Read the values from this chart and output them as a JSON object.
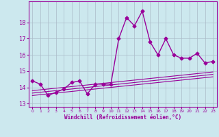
{
  "x": [
    0,
    1,
    2,
    3,
    4,
    5,
    6,
    7,
    8,
    9,
    10,
    11,
    12,
    13,
    14,
    15,
    16,
    17,
    18,
    19,
    20,
    21,
    22,
    23
  ],
  "y_line": [
    14.4,
    14.2,
    13.5,
    13.7,
    13.9,
    14.3,
    14.4,
    13.6,
    14.2,
    14.2,
    14.2,
    17.0,
    18.3,
    17.8,
    18.7,
    16.8,
    16.0,
    17.0,
    16.0,
    15.8,
    15.8,
    16.1,
    15.5,
    15.6
  ],
  "y_band_low": [
    13.5,
    13.55,
    13.6,
    13.65,
    13.7,
    13.75,
    13.8,
    13.85,
    13.9,
    13.95,
    14.0,
    14.05,
    14.1,
    14.15,
    14.2,
    14.25,
    14.3,
    14.35,
    14.4,
    14.45,
    14.5,
    14.55,
    14.6,
    14.65
  ],
  "y_band_mid": [
    13.65,
    13.7,
    13.75,
    13.8,
    13.85,
    13.9,
    13.95,
    14.0,
    14.05,
    14.1,
    14.15,
    14.2,
    14.25,
    14.3,
    14.35,
    14.4,
    14.45,
    14.5,
    14.55,
    14.6,
    14.65,
    14.7,
    14.75,
    14.8
  ],
  "y_band_high": [
    13.8,
    13.85,
    13.9,
    13.95,
    14.0,
    14.05,
    14.1,
    14.15,
    14.2,
    14.25,
    14.3,
    14.35,
    14.4,
    14.45,
    14.5,
    14.55,
    14.6,
    14.65,
    14.7,
    14.75,
    14.8,
    14.85,
    14.9,
    14.95
  ],
  "line_color": "#990099",
  "bg_color": "#cce8ee",
  "grid_color": "#aabbc8",
  "ylim": [
    12.8,
    19.3
  ],
  "yticks": [
    13,
    14,
    15,
    16,
    17,
    18
  ],
  "xticks": [
    0,
    1,
    2,
    3,
    4,
    5,
    6,
    7,
    8,
    9,
    10,
    11,
    12,
    13,
    14,
    15,
    16,
    17,
    18,
    19,
    20,
    21,
    22,
    23
  ],
  "xlabel": "Windchill (Refroidissement éolien,°C)",
  "marker": "D",
  "marker_size": 2.5,
  "figsize": [
    3.2,
    2.0
  ],
  "dpi": 100
}
